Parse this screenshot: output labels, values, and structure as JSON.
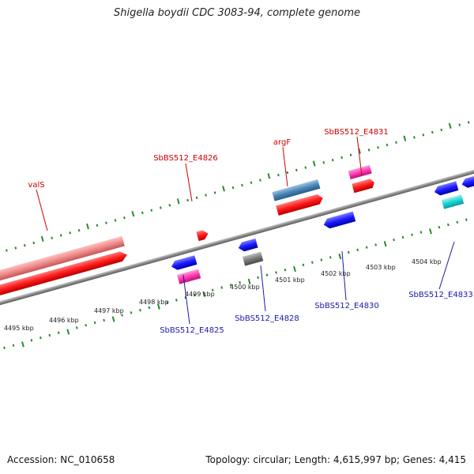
{
  "title": "Shigella boydii CDC 3083-94, complete genome",
  "footer": {
    "accession": "Accession: NC_010658",
    "summary": "Topology: circular; Length: 4,615,997 bp; Genes: 4,415"
  },
  "scale": {
    "labels": [
      "4495 kbp",
      "4496 kbp",
      "4497 kbp",
      "4498 kbp",
      "4499 kbp",
      "4500 kbp",
      "4501 kbp",
      "4502 kbp",
      "4503 kbp",
      "4504 kbp"
    ]
  },
  "genes": {
    "forward": [
      {
        "label": "valS",
        "color": "#e33b3b"
      },
      {
        "label": "SbBS512_E4826",
        "color": "#d21a1a"
      },
      {
        "label": "argF",
        "color": "#cc1a1a"
      },
      {
        "label": "SbBS512_E4831",
        "color": "#cc1a1a"
      }
    ],
    "reverse": [
      {
        "label": "SbBS512_E4825",
        "color": "#1a1aaa"
      },
      {
        "label": "SbBS512_E4828",
        "color": "#1a1aaa"
      },
      {
        "label": "SbBS512_E4830",
        "color": "#1a1aaa"
      },
      {
        "label": "SbBS512_E4833",
        "color": "#1a1aaa"
      }
    ]
  },
  "colors": {
    "forward_cds": "#ff1a1a",
    "forward_gene": "#f08a8a",
    "rRNA_or_other": "#4a86b8",
    "pink_feature": "#ff3ab0",
    "reverse_cds": "#1a1aff",
    "grey_feature": "#808080",
    "cyan_feature": "#1ad4d4",
    "backbone": "#888888",
    "tick": "#2a8a2a"
  }
}
